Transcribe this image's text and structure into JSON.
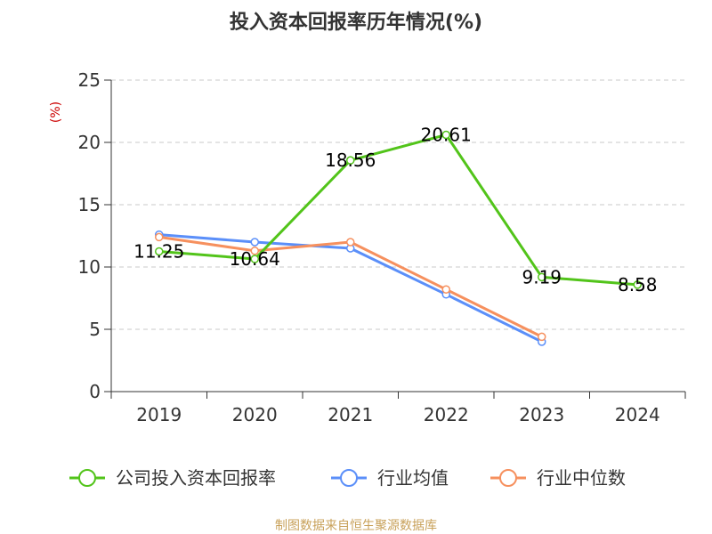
{
  "chart_data": {
    "type": "line",
    "title": "投入资本回报率历年情况(%)",
    "ylabel": "(%)",
    "xlabel": "",
    "categories": [
      "2019",
      "2020",
      "2021",
      "2022",
      "2023",
      "2024"
    ],
    "ylim": [
      0,
      25
    ],
    "yticks": [
      0,
      5,
      10,
      15,
      20,
      25
    ],
    "grid": true,
    "legend_position": "bottom",
    "series": [
      {
        "name": "公司投入资本回报率",
        "color": "#52c41a",
        "values": [
          11.25,
          10.64,
          18.56,
          20.61,
          9.19,
          8.58
        ],
        "labels": [
          "11.25",
          "10.64",
          "18.56",
          "20.61",
          "9.19",
          "8.58"
        ]
      },
      {
        "name": "行业均值",
        "color": "#5b8ff9",
        "values": [
          12.6,
          12.0,
          11.5,
          7.8,
          4.0,
          null
        ]
      },
      {
        "name": "行业中位数",
        "color": "#f6905e",
        "values": [
          12.4,
          11.3,
          12.0,
          8.2,
          4.4,
          null
        ]
      }
    ],
    "ylabel_color": "#cc0000",
    "source": "制图数据来自恒生聚源数据库",
    "source_color": "#c8a15a"
  }
}
